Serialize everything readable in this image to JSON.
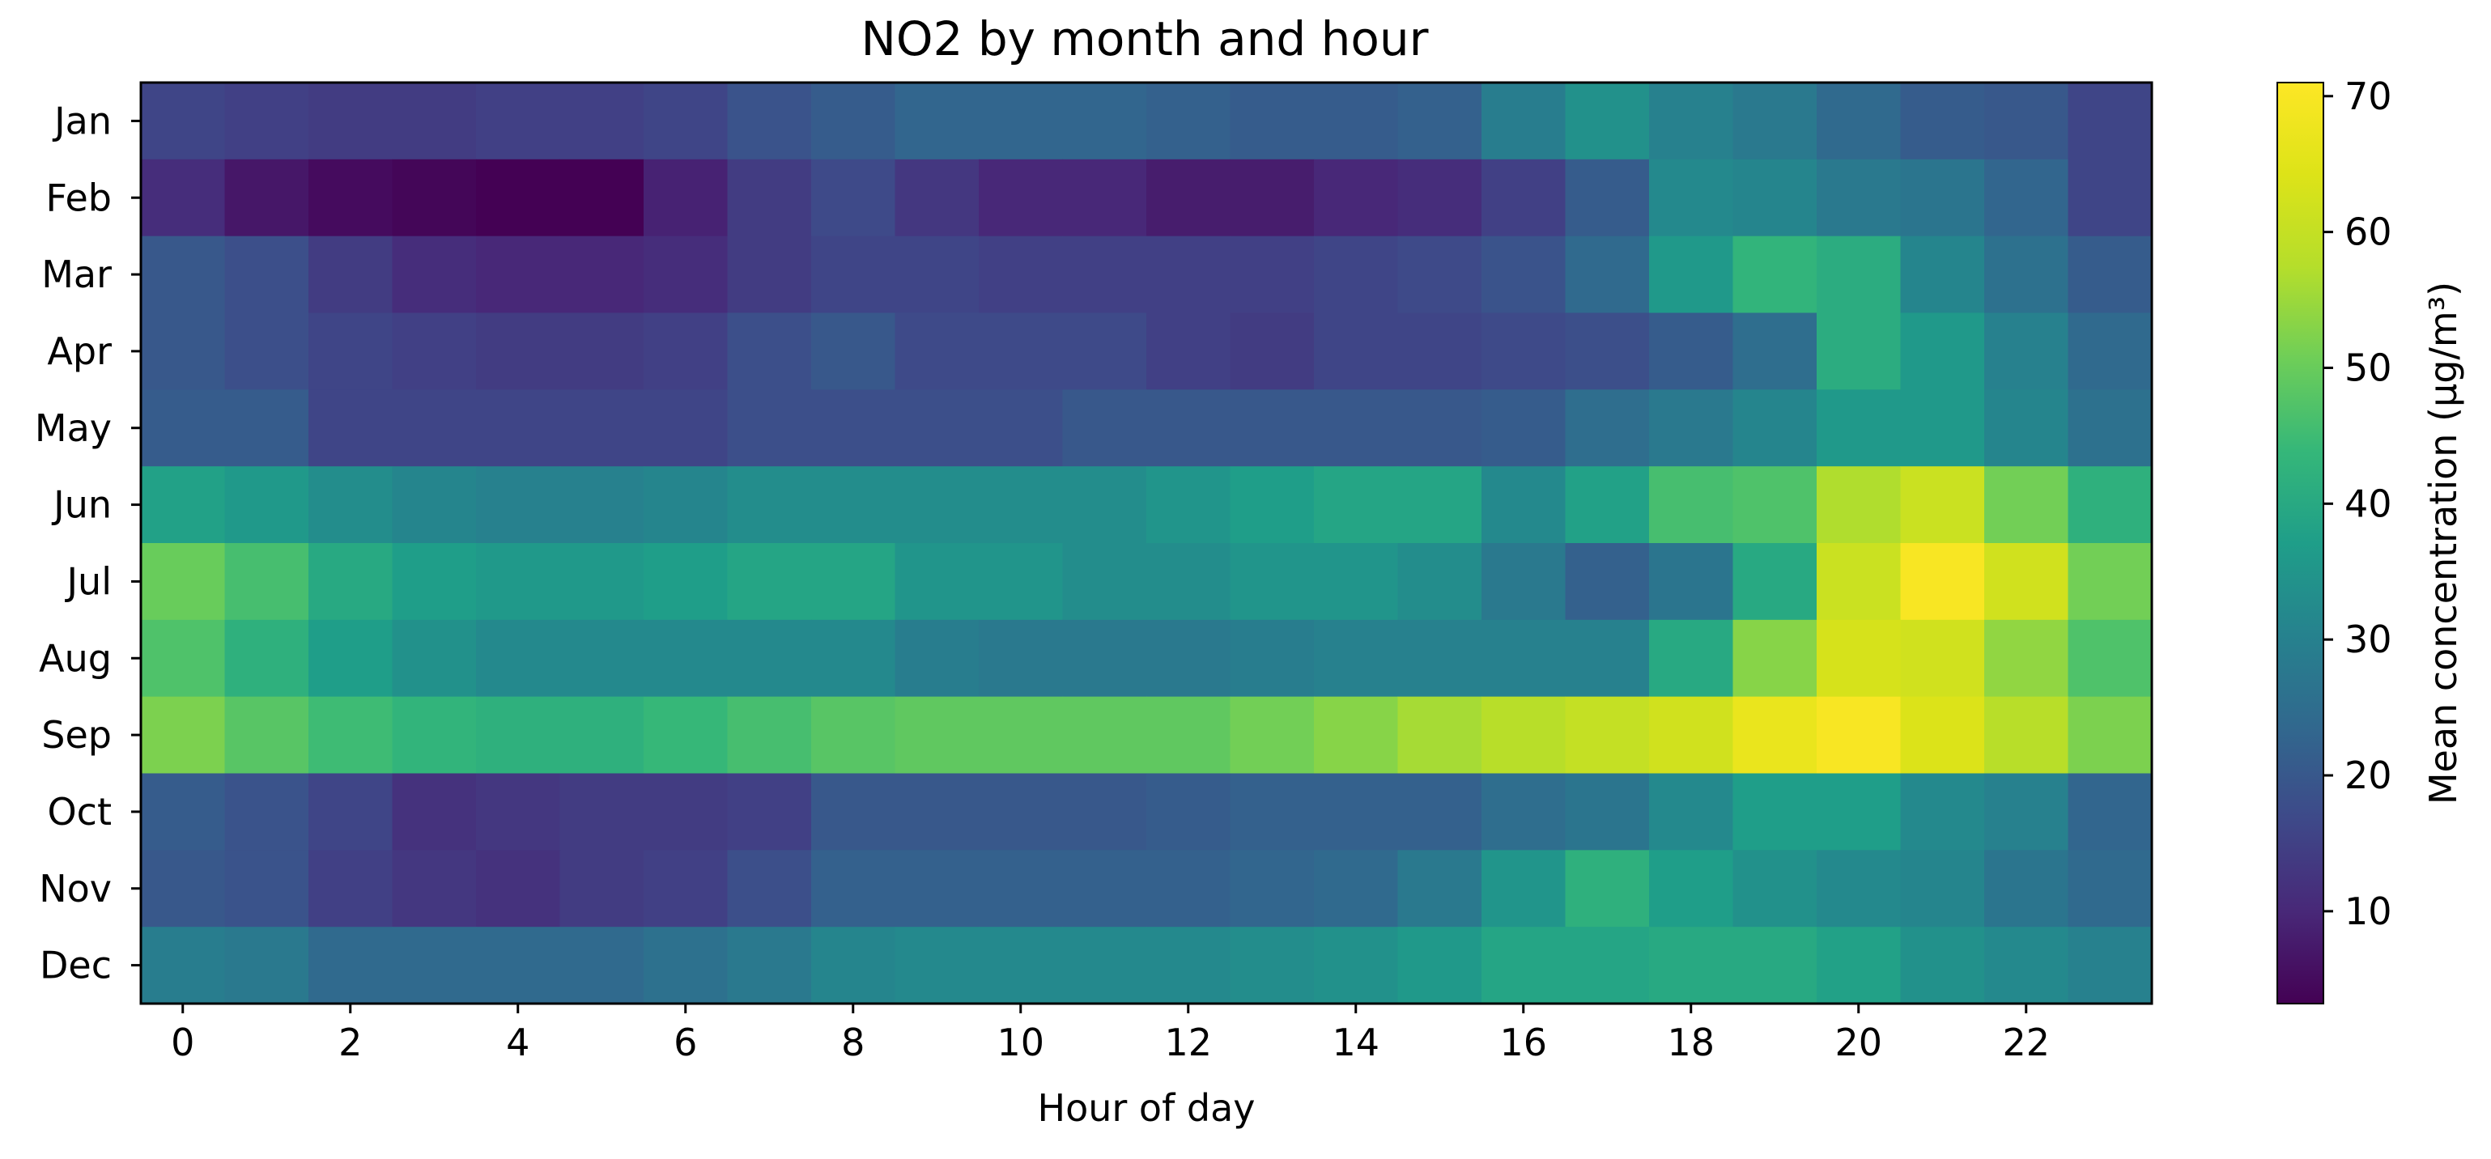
{
  "chart_data": {
    "type": "heatmap",
    "title": "NO2 by month and hour",
    "xlabel": "Hour of day",
    "ylabel": "",
    "x": [
      0,
      1,
      2,
      3,
      4,
      5,
      6,
      7,
      8,
      9,
      10,
      11,
      12,
      13,
      14,
      15,
      16,
      17,
      18,
      19,
      20,
      21,
      22,
      23
    ],
    "x_tick_labels": [
      "0",
      "2",
      "4",
      "6",
      "8",
      "10",
      "12",
      "14",
      "16",
      "18",
      "20",
      "22"
    ],
    "y": [
      "Jan",
      "Feb",
      "Mar",
      "Apr",
      "May",
      "Jun",
      "Jul",
      "Aug",
      "Sep",
      "Oct",
      "Nov",
      "Dec"
    ],
    "values": [
      [
        16,
        15,
        14,
        14,
        15,
        15,
        16,
        19,
        21,
        23,
        23,
        23,
        22,
        21,
        21,
        22,
        29,
        34,
        30,
        28,
        24,
        21,
        20,
        16
      ],
      [
        11,
        7,
        5,
        4,
        3,
        3,
        9,
        14,
        17,
        13,
        10,
        10,
        8,
        8,
        10,
        11,
        15,
        21,
        32,
        31,
        28,
        27,
        23,
        16
      ],
      [
        20,
        18,
        14,
        11,
        10,
        10,
        11,
        14,
        16,
        16,
        15,
        15,
        15,
        15,
        16,
        17,
        19,
        24,
        36,
        43,
        41,
        31,
        26,
        21
      ],
      [
        20,
        18,
        16,
        15,
        14,
        14,
        15,
        18,
        20,
        17,
        17,
        17,
        15,
        14,
        16,
        16,
        17,
        18,
        21,
        25,
        41,
        36,
        30,
        24
      ],
      [
        21,
        21,
        16,
        16,
        16,
        16,
        16,
        18,
        18,
        18,
        18,
        20,
        20,
        20,
        20,
        20,
        21,
        25,
        28,
        31,
        36,
        36,
        31,
        26
      ],
      [
        38,
        36,
        33,
        31,
        30,
        30,
        31,
        33,
        33,
        33,
        33,
        33,
        35,
        37,
        39,
        39,
        32,
        38,
        46,
        47,
        57,
        61,
        51,
        42
      ],
      [
        50,
        46,
        40,
        37,
        36,
        36,
        37,
        39,
        39,
        35,
        35,
        33,
        33,
        35,
        35,
        33,
        28,
        22,
        27,
        40,
        61,
        70,
        62,
        51
      ],
      [
        47,
        42,
        37,
        34,
        32,
        32,
        32,
        32,
        32,
        29,
        28,
        28,
        28,
        29,
        30,
        30,
        30,
        30,
        40,
        53,
        63,
        62,
        54,
        47
      ],
      [
        52,
        48,
        45,
        43,
        42,
        42,
        44,
        46,
        48,
        49,
        49,
        49,
        49,
        51,
        53,
        56,
        58,
        60,
        62,
        67,
        70,
        64,
        58,
        52
      ],
      [
        21,
        19,
        16,
        12,
        13,
        14,
        14,
        15,
        20,
        20,
        20,
        20,
        21,
        22,
        22,
        22,
        25,
        27,
        32,
        37,
        37,
        32,
        30,
        23
      ],
      [
        20,
        19,
        15,
        13,
        12,
        14,
        15,
        18,
        22,
        22,
        22,
        22,
        22,
        23,
        24,
        28,
        35,
        42,
        37,
        34,
        32,
        31,
        27,
        24
      ],
      [
        29,
        28,
        24,
        24,
        24,
        24,
        26,
        28,
        31,
        32,
        32,
        32,
        32,
        33,
        34,
        36,
        39,
        39,
        40,
        40,
        38,
        34,
        32,
        30
      ]
    ],
    "colorbar": {
      "label": "Mean concentration (µg/m³)",
      "range": [
        3.2,
        71
      ],
      "ticks": [
        10,
        20,
        30,
        40,
        50,
        60,
        70
      ],
      "colormap": "viridis"
    },
    "grid": false
  }
}
